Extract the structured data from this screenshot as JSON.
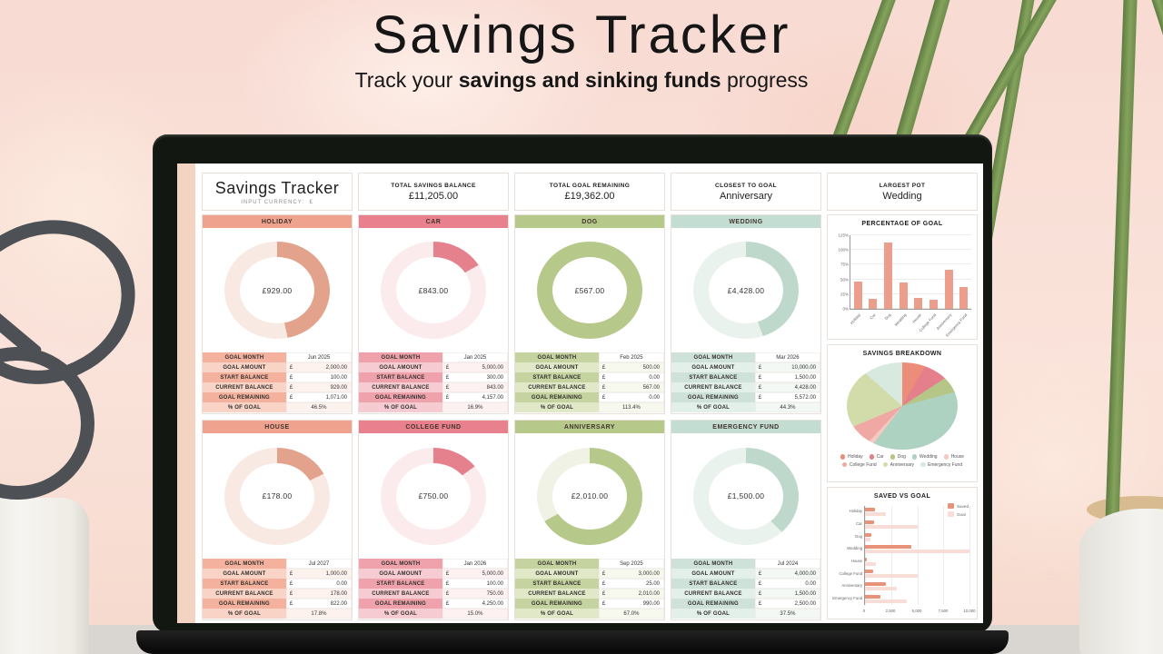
{
  "hero": {
    "title": "Savings Tracker",
    "subtitle_pre": "Track your ",
    "subtitle_bold": "savings and sinking funds",
    "subtitle_post": " progress"
  },
  "sheet": {
    "title": "Savings Tracker",
    "input_currency_label": "INPUT CURRENCY:",
    "currency_symbol": "£",
    "summary_cards": [
      {
        "label": "TOTAL SAVINGS BALANCE",
        "value": "£11,205.00"
      },
      {
        "label": "TOTAL GOAL REMAINING",
        "value": "£19,362.00"
      },
      {
        "label": "CLOSEST TO GOAL",
        "value": "Anniversary"
      },
      {
        "label": "LARGEST POT",
        "value": "Wedding"
      }
    ],
    "row_labels": [
      "GOAL MONTH",
      "GOAL AMOUNT",
      "START BALANCE",
      "CURRENT BALANCE",
      "GOAL REMAINING",
      "% OF GOAL"
    ],
    "pots": [
      {
        "name": "HOLIDAY",
        "theme": "salmon",
        "balance": "£929.00",
        "percent_of_goal": 46.5,
        "values": [
          "Jun 2025",
          "2,000.00",
          "100.00",
          "929.00",
          "1,071.00",
          "46.5%"
        ]
      },
      {
        "name": "CAR",
        "theme": "rose",
        "balance": "£843.00",
        "percent_of_goal": 16.9,
        "values": [
          "Jan 2025",
          "5,000.00",
          "300.00",
          "843.00",
          "4,157.00",
          "16.9%"
        ]
      },
      {
        "name": "DOG",
        "theme": "olive",
        "balance": "£567.00",
        "percent_of_goal": 113.4,
        "values": [
          "Feb 2025",
          "500.00",
          "0.00",
          "567.00",
          "0.00",
          "113.4%"
        ]
      },
      {
        "name": "WEDDING",
        "theme": "sage",
        "balance": "£4,428.00",
        "percent_of_goal": 44.3,
        "values": [
          "Mar 2026",
          "10,000.00",
          "1,500.00",
          "4,428.00",
          "5,572.00",
          "44.3%"
        ]
      },
      {
        "name": "HOUSE",
        "theme": "salmon",
        "balance": "£178.00",
        "percent_of_goal": 17.8,
        "values": [
          "Jul 2027",
          "1,000.00",
          "0.00",
          "178.00",
          "822.00",
          "17.8%"
        ]
      },
      {
        "name": "COLLEGE FUND",
        "theme": "rose",
        "balance": "£750.00",
        "percent_of_goal": 15.0,
        "values": [
          "Jan 2026",
          "5,000.00",
          "100.00",
          "750.00",
          "4,250.00",
          "15.0%"
        ]
      },
      {
        "name": "ANNIVERSARY",
        "theme": "olive",
        "balance": "£2,010.00",
        "percent_of_goal": 67.0,
        "values": [
          "Sep 2025",
          "3,000.00",
          "25.00",
          "2,010.00",
          "990.00",
          "67.0%"
        ]
      },
      {
        "name": "EMERGENCY FUND",
        "theme": "sage",
        "balance": "£1,500.00",
        "percent_of_goal": 37.5,
        "values": [
          "Jul 2024",
          "4,000.00",
          "0.00",
          "1,500.00",
          "2,500.00",
          "37.5%"
        ]
      }
    ],
    "charts": {
      "percentage_of_goal": {
        "type": "bar",
        "title": "PERCENTAGE OF GOAL",
        "categories": [
          "Holiday",
          "Car",
          "Dog",
          "Wedding",
          "House",
          "College Fund",
          "Anniversary",
          "Emergency Fund"
        ],
        "values": [
          46.5,
          16.9,
          113.4,
          44.3,
          17.8,
          15.0,
          67.0,
          37.5
        ],
        "y_ticks": [
          "0%",
          "25%",
          "50%",
          "75%",
          "100%",
          "125%"
        ],
        "y_max": 125,
        "bar_color": "#eb9e8c"
      },
      "savings_breakdown": {
        "type": "pie",
        "title": "SAVINGS BREAKDOWN",
        "slices": [
          {
            "label": "Holiday",
            "value": 929,
            "color": "#ec8d7a"
          },
          {
            "label": "Car",
            "value": 843,
            "color": "#e57f8b"
          },
          {
            "label": "Dog",
            "value": 567,
            "color": "#b5c687"
          },
          {
            "label": "Wedding",
            "value": 4428,
            "color": "#aed2c1"
          },
          {
            "label": "House",
            "value": 178,
            "color": "#f5c9c0"
          },
          {
            "label": "College Fund",
            "value": 750,
            "color": "#efa8a4"
          },
          {
            "label": "Anniversary",
            "value": 2010,
            "color": "#d2dcaa"
          },
          {
            "label": "Emergency Fund",
            "value": 1500,
            "color": "#d8e9e0"
          }
        ]
      },
      "saved_vs_goal": {
        "type": "hbar",
        "title": "SAVED VS GOAL",
        "categories": [
          "Holiday",
          "Car",
          "Dog",
          "Wedding",
          "House",
          "College Fund",
          "Anniversary",
          "Emergency Fund"
        ],
        "series": [
          {
            "name": "Saved",
            "color": "#e89379",
            "values": [
              929,
              843,
              567,
              4428,
              178,
              750,
              2010,
              1500
            ]
          },
          {
            "name": "Goal",
            "color": "#f8ddd6",
            "values": [
              2000,
              5000,
              500,
              10000,
              1000,
              5000,
              3000,
              4000
            ]
          }
        ],
        "x_ticks": [
          "0",
          "2,500",
          "5,000",
          "7,500",
          "10,000"
        ],
        "x_max": 10000
      }
    }
  }
}
